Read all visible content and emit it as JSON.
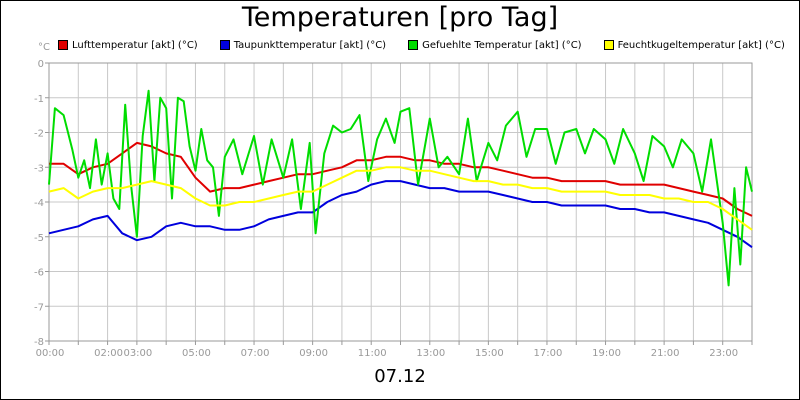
{
  "chart_data": {
    "type": "line",
    "title": "Temperaturen [pro Tag]",
    "xlabel": "07.12",
    "ylabel": "°C",
    "xlim": [
      0,
      24
    ],
    "ylim": [
      -8,
      0
    ],
    "grid": true,
    "legend_position": "top",
    "x_ticks": [
      {
        "pos": 0,
        "label": "00:00"
      },
      {
        "pos": 2,
        "label": "02:00"
      },
      {
        "pos": 3,
        "label": "03:00"
      },
      {
        "pos": 5,
        "label": "05:00"
      },
      {
        "pos": 7,
        "label": "07:00"
      },
      {
        "pos": 9,
        "label": "09:00"
      },
      {
        "pos": 11,
        "label": "11:00"
      },
      {
        "pos": 13,
        "label": "13:00"
      },
      {
        "pos": 15,
        "label": "15:00"
      },
      {
        "pos": 17,
        "label": "17:00"
      },
      {
        "pos": 19,
        "label": "19:00"
      },
      {
        "pos": 21,
        "label": "21:00"
      },
      {
        "pos": 23,
        "label": "23:00"
      }
    ],
    "y_ticks": [
      "0",
      "-1",
      "-2",
      "-3",
      "-4",
      "-5",
      "-6",
      "-7",
      "-8"
    ],
    "series": [
      {
        "name": "Lufttemperatur [akt] (°C)",
        "color": "#e00000",
        "x": [
          0,
          0.5,
          1,
          1.5,
          2,
          2.5,
          3,
          3.5,
          4,
          4.5,
          5,
          5.5,
          6,
          6.5,
          7,
          7.5,
          8,
          8.5,
          9,
          9.5,
          10,
          10.5,
          11,
          11.5,
          12,
          12.5,
          13,
          13.5,
          14,
          14.5,
          15,
          15.5,
          16,
          16.5,
          17,
          17.5,
          18,
          18.5,
          19,
          19.5,
          20,
          20.5,
          21,
          21.5,
          22,
          22.5,
          23,
          23.5,
          24
        ],
        "values": [
          -2.9,
          -2.9,
          -3.2,
          -3.0,
          -2.9,
          -2.6,
          -2.3,
          -2.4,
          -2.6,
          -2.7,
          -3.3,
          -3.7,
          -3.6,
          -3.6,
          -3.5,
          -3.4,
          -3.3,
          -3.2,
          -3.2,
          -3.1,
          -3.0,
          -2.8,
          -2.8,
          -2.7,
          -2.7,
          -2.8,
          -2.8,
          -2.9,
          -2.9,
          -3.0,
          -3.0,
          -3.1,
          -3.2,
          -3.3,
          -3.3,
          -3.4,
          -3.4,
          -3.4,
          -3.4,
          -3.5,
          -3.5,
          -3.5,
          -3.5,
          -3.6,
          -3.7,
          -3.8,
          -3.9,
          -4.2,
          -4.4
        ]
      },
      {
        "name": "Taupunkttemperatur [akt] (°C)",
        "color": "#0000dd",
        "x": [
          0,
          0.5,
          1,
          1.5,
          2,
          2.5,
          3,
          3.5,
          4,
          4.5,
          5,
          5.5,
          6,
          6.5,
          7,
          7.5,
          8,
          8.5,
          9,
          9.5,
          10,
          10.5,
          11,
          11.5,
          12,
          12.5,
          13,
          13.5,
          14,
          14.5,
          15,
          15.5,
          16,
          16.5,
          17,
          17.5,
          18,
          18.5,
          19,
          19.5,
          20,
          20.5,
          21,
          21.5,
          22,
          22.5,
          23,
          23.5,
          24
        ],
        "values": [
          -4.9,
          -4.8,
          -4.7,
          -4.5,
          -4.4,
          -4.9,
          -5.1,
          -5.0,
          -4.7,
          -4.6,
          -4.7,
          -4.7,
          -4.8,
          -4.8,
          -4.7,
          -4.5,
          -4.4,
          -4.3,
          -4.3,
          -4.0,
          -3.8,
          -3.7,
          -3.5,
          -3.4,
          -3.4,
          -3.5,
          -3.6,
          -3.6,
          -3.7,
          -3.7,
          -3.7,
          -3.8,
          -3.9,
          -4.0,
          -4.0,
          -4.1,
          -4.1,
          -4.1,
          -4.1,
          -4.2,
          -4.2,
          -4.3,
          -4.3,
          -4.4,
          -4.5,
          -4.6,
          -4.8,
          -5.0,
          -5.3
        ]
      },
      {
        "name": "Gefuehlte Temperatur [akt] (°C)",
        "color": "#00dd00",
        "x": [
          0,
          0.2,
          0.5,
          0.8,
          1.0,
          1.2,
          1.4,
          1.6,
          1.8,
          2.0,
          2.2,
          2.4,
          2.6,
          2.8,
          3.0,
          3.2,
          3.4,
          3.6,
          3.8,
          4.0,
          4.2,
          4.4,
          4.6,
          4.8,
          5.0,
          5.2,
          5.4,
          5.6,
          5.8,
          6.0,
          6.3,
          6.6,
          7.0,
          7.3,
          7.6,
          8.0,
          8.3,
          8.6,
          8.9,
          9.1,
          9.4,
          9.7,
          10.0,
          10.3,
          10.6,
          10.9,
          11.2,
          11.5,
          11.8,
          12.0,
          12.3,
          12.6,
          13.0,
          13.3,
          13.6,
          14.0,
          14.3,
          14.6,
          15.0,
          15.3,
          15.6,
          16.0,
          16.3,
          16.6,
          17.0,
          17.3,
          17.6,
          18.0,
          18.3,
          18.6,
          19.0,
          19.3,
          19.6,
          20.0,
          20.3,
          20.6,
          21.0,
          21.3,
          21.6,
          22.0,
          22.3,
          22.6,
          23.0,
          23.2,
          23.4,
          23.6,
          23.8,
          24.0
        ],
        "values": [
          -3.5,
          -1.3,
          -1.5,
          -2.5,
          -3.3,
          -2.8,
          -3.6,
          -2.2,
          -3.5,
          -2.6,
          -3.9,
          -4.2,
          -1.2,
          -3.5,
          -5.0,
          -2.1,
          -0.8,
          -3.4,
          -1.0,
          -1.3,
          -3.9,
          -1.0,
          -1.1,
          -2.4,
          -3.1,
          -1.9,
          -2.8,
          -3.0,
          -4.4,
          -2.7,
          -2.2,
          -3.2,
          -2.1,
          -3.5,
          -2.2,
          -3.3,
          -2.2,
          -4.2,
          -2.3,
          -4.9,
          -2.6,
          -1.8,
          -2.0,
          -1.9,
          -1.5,
          -3.4,
          -2.2,
          -1.6,
          -2.3,
          -1.4,
          -1.3,
          -3.5,
          -1.6,
          -3.0,
          -2.7,
          -3.2,
          -1.6,
          -3.4,
          -2.3,
          -2.8,
          -1.8,
          -1.4,
          -2.7,
          -1.9,
          -1.9,
          -2.9,
          -2.0,
          -1.9,
          -2.6,
          -1.9,
          -2.2,
          -2.9,
          -1.9,
          -2.6,
          -3.4,
          -2.1,
          -2.4,
          -3.0,
          -2.2,
          -2.6,
          -3.7,
          -2.2,
          -4.6,
          -6.4,
          -3.6,
          -5.8,
          -3.0,
          -3.7
        ]
      },
      {
        "name": "Feuchtkugeltemperatur [akt] (°C)",
        "color": "#ffff00",
        "x": [
          0,
          0.5,
          1,
          1.5,
          2,
          2.5,
          3,
          3.5,
          4,
          4.5,
          5,
          5.5,
          6,
          6.5,
          7,
          7.5,
          8,
          8.5,
          9,
          9.5,
          10,
          10.5,
          11,
          11.5,
          12,
          12.5,
          13,
          13.5,
          14,
          14.5,
          15,
          15.5,
          16,
          16.5,
          17,
          17.5,
          18,
          18.5,
          19,
          19.5,
          20,
          20.5,
          21,
          21.5,
          22,
          22.5,
          23,
          23.5,
          24
        ],
        "values": [
          -3.7,
          -3.6,
          -3.9,
          -3.7,
          -3.6,
          -3.6,
          -3.5,
          -3.4,
          -3.5,
          -3.6,
          -3.9,
          -4.1,
          -4.1,
          -4.0,
          -4.0,
          -3.9,
          -3.8,
          -3.7,
          -3.7,
          -3.5,
          -3.3,
          -3.1,
          -3.1,
          -3.0,
          -3.0,
          -3.1,
          -3.1,
          -3.2,
          -3.3,
          -3.4,
          -3.4,
          -3.5,
          -3.5,
          -3.6,
          -3.6,
          -3.7,
          -3.7,
          -3.7,
          -3.7,
          -3.8,
          -3.8,
          -3.8,
          -3.9,
          -3.9,
          -4.0,
          -4.0,
          -4.2,
          -4.5,
          -4.8
        ]
      }
    ]
  }
}
